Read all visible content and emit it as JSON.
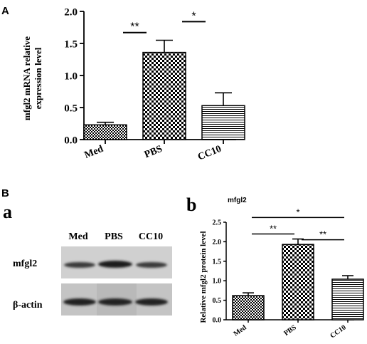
{
  "panel_A": {
    "letter": "A"
  },
  "panel_B": {
    "letter": "B"
  },
  "sub_a": {
    "letter": "a",
    "lanes": [
      "Med",
      "PBS",
      "CC10"
    ],
    "rows": [
      "mfgl2",
      "β-actin"
    ]
  },
  "sub_b": {
    "letter": "b",
    "corner_label": "mfgl2"
  },
  "colors": {
    "ink": "#000000",
    "band": "#2a2a2a",
    "blot_bg": "#d0d0d0"
  },
  "chart_data": [
    {
      "type": "bar",
      "title": "",
      "xlabel": "",
      "ylabel": "mfgl2 mRNA relative expression level",
      "ylabel_lines": [
        "mfgl2 mRNA relative",
        "expression level"
      ],
      "categories": [
        "Med",
        "PBS",
        "CC10"
      ],
      "values": [
        0.23,
        1.36,
        0.53
      ],
      "errors": [
        0.04,
        0.19,
        0.2
      ],
      "patterns": [
        "checker-small",
        "checker-large",
        "horizontal-lines"
      ],
      "ylim": [
        0,
        2.0
      ],
      "yticks": [
        "0.0",
        "0.5",
        "1.0",
        "1.5",
        "2.0"
      ],
      "significance": [
        {
          "from": 0,
          "to": 1,
          "label": "**",
          "level": 1.67
        },
        {
          "from": 1,
          "to": 2,
          "label": "*",
          "level": 1.84
        }
      ]
    },
    {
      "type": "bar",
      "title": "",
      "xlabel": "",
      "ylabel": "Relative mfgl2 protein level",
      "categories": [
        "Med",
        "PBS",
        "CC10"
      ],
      "values": [
        0.62,
        1.93,
        1.04
      ],
      "errors": [
        0.07,
        0.14,
        0.09
      ],
      "patterns": [
        "checker-small",
        "checker-large",
        "horizontal-lines"
      ],
      "ylim": [
        0,
        2.5
      ],
      "yticks": [
        "0.0",
        "0.5",
        "1.0",
        "1.5",
        "2.0",
        "2.5"
      ],
      "significance": [
        {
          "from": 0,
          "to": 1,
          "label": "**",
          "level": 2.2
        },
        {
          "from": 1,
          "to": 2,
          "label": "**",
          "level": 2.05
        },
        {
          "from": 0,
          "to": 2,
          "label": "*",
          "level": 2.62
        }
      ]
    }
  ]
}
